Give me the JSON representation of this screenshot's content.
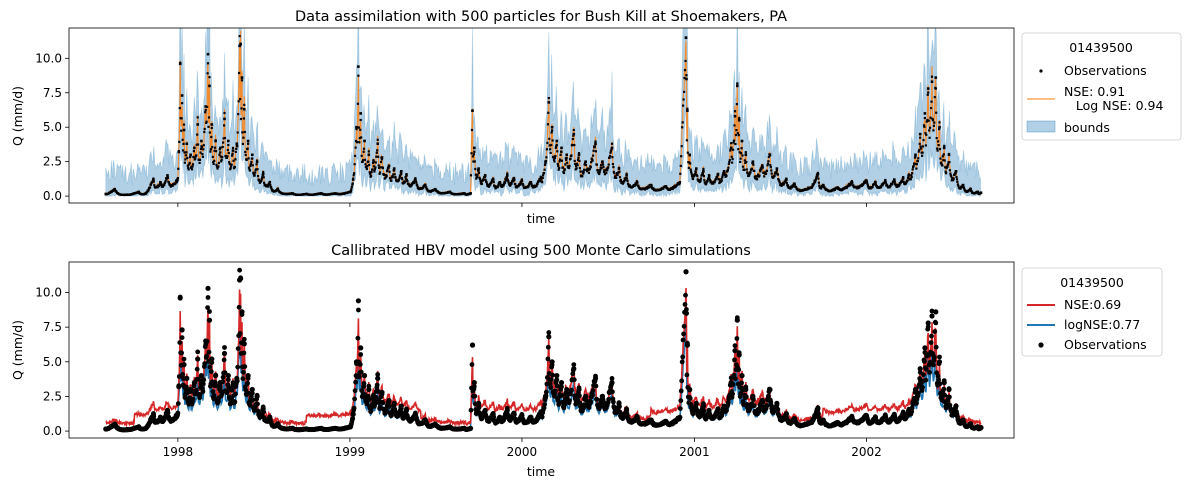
{
  "chart_data": [
    {
      "type": "line",
      "title": "Data assimilation with 500 particles for Bush Kill at Shoemakers, PA",
      "xlabel": "time",
      "ylabel": "Q (mm/d)",
      "xlim": [
        "1997-05-15",
        "2002-11-10"
      ],
      "ylim": [
        -0.5,
        12.2
      ],
      "yticks": [
        "0.0",
        "2.5",
        "5.0",
        "7.5",
        "10.0"
      ],
      "xticks_labeled": false,
      "legend": {
        "title": "01439500",
        "placement": "outside-right",
        "entries": [
          "Observations",
          "NSE: 0.91\n   Log NSE: 0.94",
          "bounds"
        ]
      },
      "series": [
        {
          "name": "Observations",
          "kind": "points",
          "color": "#000000"
        },
        {
          "name": "NSE: 0.91\n   Log NSE: 0.94",
          "kind": "line",
          "color": "#ff7f0e"
        },
        {
          "name": "bounds",
          "kind": "band",
          "color": "#1f77b4"
        }
      ]
    },
    {
      "type": "line",
      "title": "Callibrated HBV model using 500 Monte Carlo simulations",
      "xlabel": "time",
      "ylabel": "Q (mm/d)",
      "xlim": [
        "1997-05-15",
        "2002-11-10"
      ],
      "ylim": [
        -0.5,
        12.2
      ],
      "yticks": [
        "0.0",
        "2.5",
        "5.0",
        "7.5",
        "10.0"
      ],
      "xticks": [
        "1998",
        "1999",
        "2000",
        "2001",
        "2002"
      ],
      "legend": {
        "title": "01439500",
        "placement": "outside-right",
        "entries": [
          "NSE:0.69",
          "logNSE:0.77",
          "Observations"
        ]
      },
      "series": [
        {
          "name": "NSE:0.69",
          "kind": "line",
          "color": "#d62728"
        },
        {
          "name": "logNSE:0.77",
          "kind": "line",
          "color": "#1f77b4"
        },
        {
          "name": "Observations",
          "kind": "points",
          "color": "#000000"
        }
      ]
    }
  ],
  "observations": [
    [
      "1997-08-01",
      0.15
    ],
    [
      "1997-08-20",
      0.5
    ],
    [
      "1997-09-15",
      0.1
    ],
    [
      "1997-10-10",
      0.3
    ],
    [
      "1997-10-25",
      0.2
    ],
    [
      "1997-11-10",
      1.2
    ],
    [
      "1997-11-25",
      1.0
    ],
    [
      "1997-12-10",
      1.5
    ],
    [
      "1997-12-31",
      1.2
    ],
    [
      "1998-01-03",
      3.2
    ],
    [
      "1998-01-06",
      9.6
    ],
    [
      "1998-01-10",
      7.3
    ],
    [
      "1998-01-14",
      4.8
    ],
    [
      "1998-01-20",
      3.8
    ],
    [
      "1998-01-28",
      3.0
    ],
    [
      "1998-02-05",
      3.5
    ],
    [
      "1998-02-12",
      5.2
    ],
    [
      "1998-02-20",
      4.0
    ],
    [
      "1998-03-01",
      6.5
    ],
    [
      "1998-03-06",
      10.3
    ],
    [
      "1998-03-09",
      8.0
    ],
    [
      "1998-03-14",
      5.2
    ],
    [
      "1998-03-22",
      4.0
    ],
    [
      "1998-04-01",
      3.5
    ],
    [
      "1998-04-10",
      5.6
    ],
    [
      "1998-04-18",
      4.0
    ],
    [
      "1998-04-28",
      3.3
    ],
    [
      "1998-05-06",
      3.8
    ],
    [
      "1998-05-12",
      10.9
    ],
    [
      "1998-05-14",
      11.0
    ],
    [
      "1998-05-17",
      8.6
    ],
    [
      "1998-05-22",
      6.3
    ],
    [
      "1998-05-30",
      4.0
    ],
    [
      "1998-06-08",
      3.0
    ],
    [
      "1998-06-18",
      2.5
    ],
    [
      "1998-07-01",
      1.6
    ],
    [
      "1998-07-15",
      1.0
    ],
    [
      "1998-08-01",
      0.5
    ],
    [
      "1998-09-01",
      0.2
    ],
    [
      "1998-10-01",
      0.15
    ],
    [
      "1998-11-01",
      0.2
    ],
    [
      "1998-12-01",
      0.2
    ],
    [
      "1999-01-02",
      0.3
    ],
    [
      "1999-01-08",
      1.2
    ],
    [
      "1999-01-15",
      5.0
    ],
    [
      "1999-01-19",
      9.4
    ],
    [
      "1999-01-24",
      6.0
    ],
    [
      "1999-02-01",
      4.0
    ],
    [
      "1999-02-10",
      3.0
    ],
    [
      "1999-02-20",
      2.5
    ],
    [
      "1999-03-01",
      3.8
    ],
    [
      "1999-03-10",
      2.8
    ],
    [
      "1999-03-25",
      2.2
    ],
    [
      "1999-04-05",
      2.0
    ],
    [
      "1999-04-20",
      1.8
    ],
    [
      "1999-05-01",
      1.5
    ],
    [
      "1999-05-20",
      1.2
    ],
    [
      "1999-06-10",
      0.8
    ],
    [
      "1999-07-01",
      0.5
    ],
    [
      "1999-08-01",
      0.3
    ],
    [
      "1999-09-01",
      0.2
    ],
    [
      "1999-09-14",
      0.2
    ],
    [
      "1999-09-18",
      6.2
    ],
    [
      "1999-09-22",
      3.5
    ],
    [
      "1999-10-01",
      2.0
    ],
    [
      "1999-10-15",
      1.5
    ],
    [
      "1999-11-01",
      1.2
    ],
    [
      "1999-11-15",
      1.0
    ],
    [
      "1999-12-01",
      1.5
    ],
    [
      "1999-12-15",
      1.3
    ],
    [
      "2000-01-01",
      1.1
    ],
    [
      "2000-01-20",
      1.0
    ],
    [
      "2000-02-10",
      1.3
    ],
    [
      "2000-02-20",
      2.5
    ],
    [
      "2000-02-27",
      6.8
    ],
    [
      "2000-03-05",
      5.0
    ],
    [
      "2000-03-15",
      4.0
    ],
    [
      "2000-03-25",
      3.5
    ],
    [
      "2000-04-05",
      3.0
    ],
    [
      "2000-04-20",
      4.5
    ],
    [
      "2000-05-01",
      3.0
    ],
    [
      "2000-05-15",
      2.5
    ],
    [
      "2000-06-05",
      3.8
    ],
    [
      "2000-06-20",
      2.5
    ],
    [
      "2000-07-10",
      3.5
    ],
    [
      "2000-07-25",
      2.0
    ],
    [
      "2000-08-10",
      1.5
    ],
    [
      "2000-09-01",
      1.0
    ],
    [
      "2000-10-01",
      0.8
    ],
    [
      "2000-11-01",
      0.7
    ],
    [
      "2000-12-01",
      1.0
    ],
    [
      "2000-12-14",
      11.5
    ],
    [
      "2000-12-15",
      8.5
    ],
    [
      "2000-12-17",
      6.2
    ],
    [
      "2000-12-22",
      3.0
    ],
    [
      "2001-01-05",
      2.0
    ],
    [
      "2001-01-20",
      1.8
    ],
    [
      "2001-02-01",
      1.5
    ],
    [
      "2001-02-20",
      1.6
    ],
    [
      "2001-03-05",
      1.8
    ],
    [
      "2001-03-20",
      3.5
    ],
    [
      "2001-03-28",
      5.8
    ],
    [
      "2001-04-02",
      8.0
    ],
    [
      "2001-04-06",
      5.5
    ],
    [
      "2001-04-12",
      4.0
    ],
    [
      "2001-04-20",
      3.0
    ],
    [
      "2001-05-05",
      2.5
    ],
    [
      "2001-05-25",
      2.2
    ],
    [
      "2001-06-10",
      3.0
    ],
    [
      "2001-06-25",
      2.0
    ],
    [
      "2001-07-15",
      1.2
    ],
    [
      "2001-08-01",
      0.9
    ],
    [
      "2001-09-01",
      0.6
    ],
    [
      "2001-09-20",
      1.6
    ],
    [
      "2001-10-01",
      0.8
    ],
    [
      "2001-11-01",
      0.6
    ],
    [
      "2001-12-01",
      1.0
    ],
    [
      "2002-01-01",
      1.1
    ],
    [
      "2002-01-20",
      1.0
    ],
    [
      "2002-02-10",
      1.1
    ],
    [
      "2002-03-01",
      1.2
    ],
    [
      "2002-03-20",
      1.3
    ],
    [
      "2002-04-01",
      1.5
    ],
    [
      "2002-04-15",
      3.0
    ],
    [
      "2002-04-25",
      4.5
    ],
    [
      "2002-05-05",
      6.0
    ],
    [
      "2002-05-12",
      7.8
    ],
    [
      "2002-05-20",
      8.3
    ],
    [
      "2002-05-28",
      8.6
    ],
    [
      "2002-06-05",
      5.0
    ],
    [
      "2002-06-15",
      3.5
    ],
    [
      "2002-06-25",
      3.0
    ],
    [
      "2002-07-10",
      1.8
    ],
    [
      "2002-07-25",
      0.8
    ],
    [
      "2002-08-10",
      0.5
    ],
    [
      "2002-08-25",
      0.3
    ],
    [
      "2002-09-01",
      0.25
    ]
  ]
}
